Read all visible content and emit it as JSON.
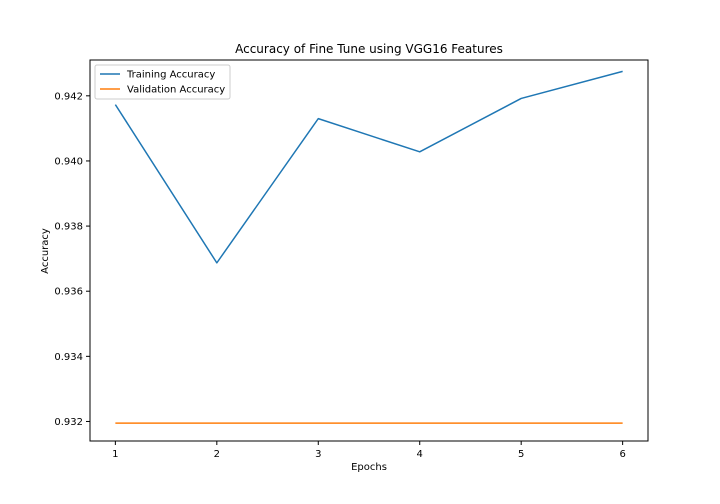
{
  "chart_data": {
    "type": "line",
    "title": "Accuracy of Fine Tune using VGG16 Features",
    "xlabel": "Epochs",
    "ylabel": "Accuracy",
    "x": [
      1,
      2,
      3,
      4,
      5,
      6
    ],
    "xticks": [
      "1",
      "2",
      "3",
      "4",
      "5",
      "6"
    ],
    "yticks": [
      "0.932",
      "0.934",
      "0.936",
      "0.938",
      "0.940",
      "0.942"
    ],
    "xlim": [
      0.75,
      6.25
    ],
    "ylim": [
      0.9314,
      0.9431
    ],
    "grid": false,
    "legend_position": "top-left",
    "series": [
      {
        "name": "Training Accuracy",
        "color": "#1f77b4",
        "values": [
          0.94173,
          0.93687,
          0.9413,
          0.94028,
          0.94192,
          0.94275
        ]
      },
      {
        "name": "Validation Accuracy",
        "color": "#ff7f0e",
        "values": [
          0.93195,
          0.93195,
          0.93195,
          0.93195,
          0.93195,
          0.93195
        ]
      }
    ]
  }
}
